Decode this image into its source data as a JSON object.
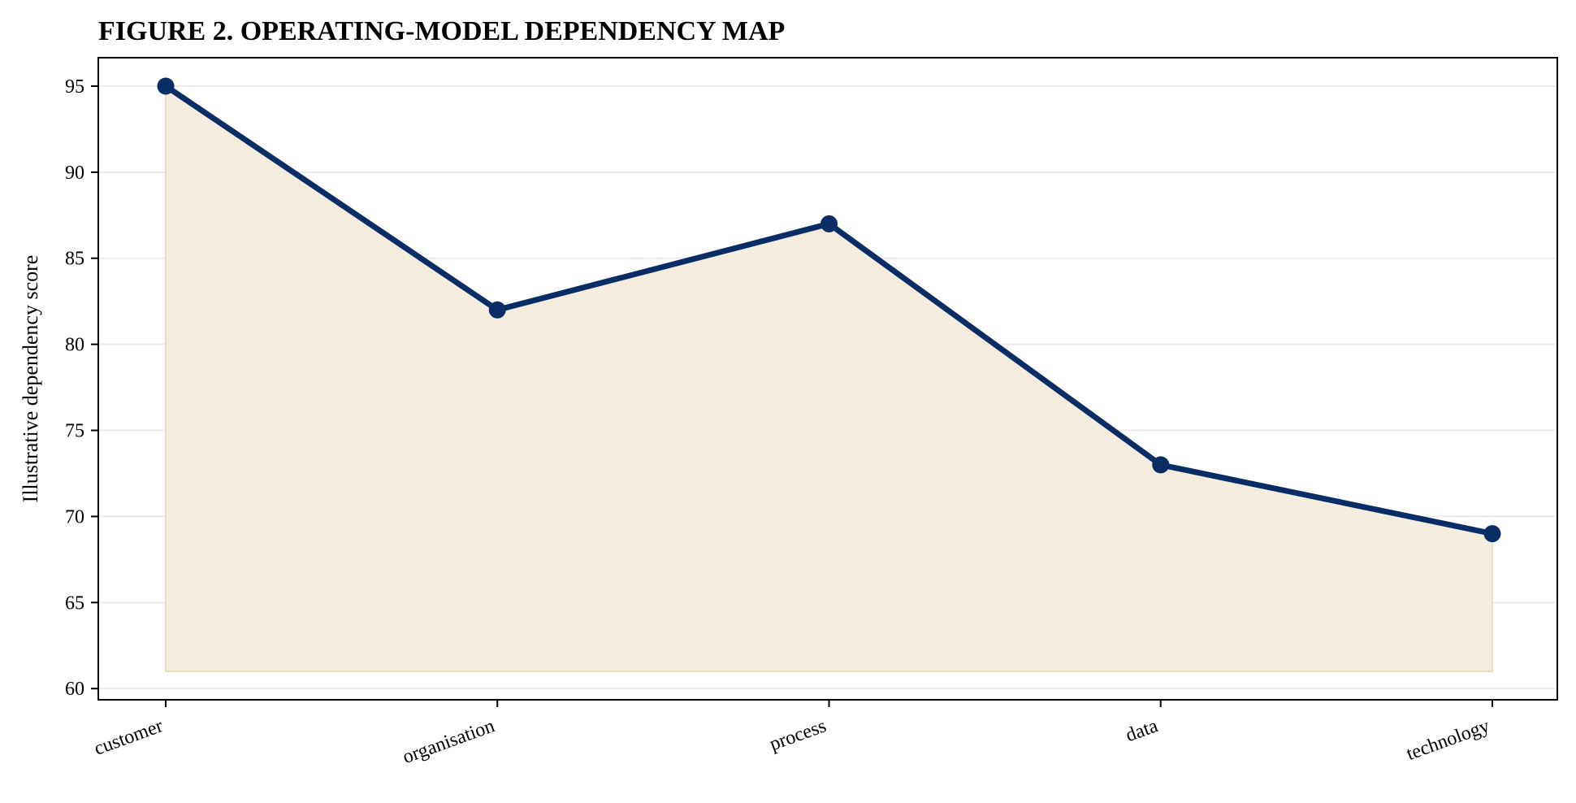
{
  "chart_data": {
    "type": "area",
    "title": "FIGURE 2. OPERATING-MODEL DEPENDENCY MAP",
    "xlabel": "",
    "ylabel": "Illustrative dependency score",
    "categories": [
      "customer",
      "organisation",
      "process",
      "data",
      "technology"
    ],
    "series": [
      {
        "values": [
          95,
          82,
          87,
          73,
          69
        ]
      }
    ],
    "fill_baseline": 61,
    "ylim": [
      59.35,
      96.65
    ],
    "yticks": [
      60,
      65,
      70,
      75,
      80,
      85,
      90,
      95
    ],
    "grid": "horizontal",
    "colors": {
      "line": "#0a2d66",
      "marker": "#0a2d66",
      "fill": "#f4ecdf",
      "fill_edge": "#ecdcbc",
      "grid": "#ececec",
      "frame": "#000000"
    }
  }
}
